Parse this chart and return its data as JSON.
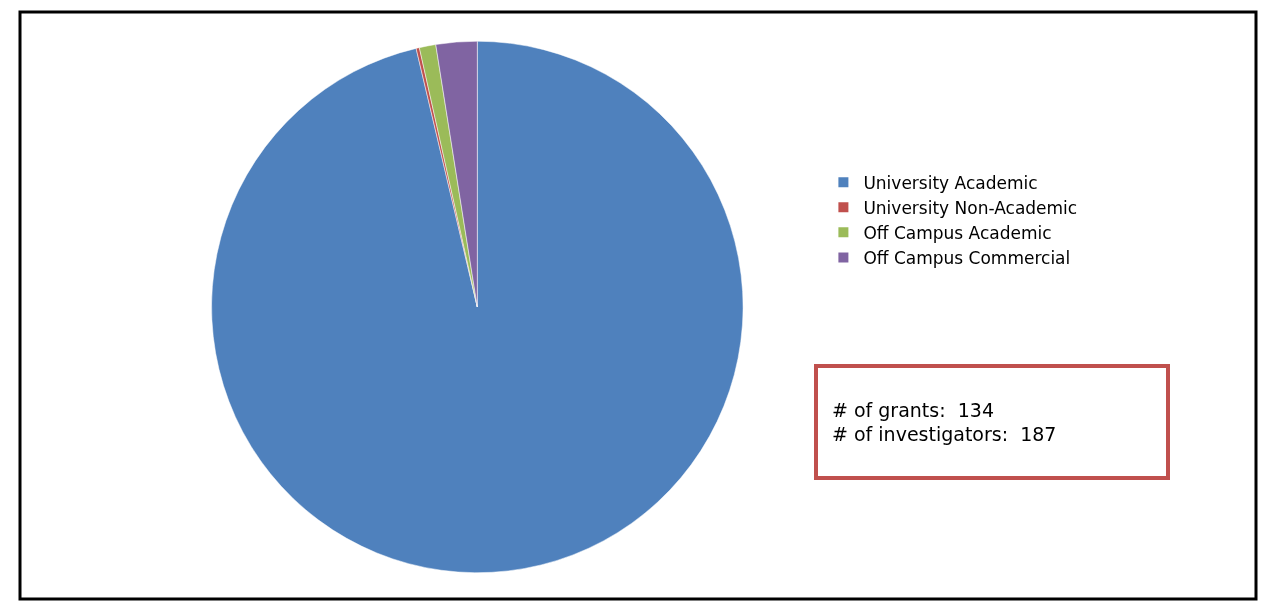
{
  "chart_data": {
    "type": "pie",
    "categories": [
      "University Academic",
      "University Non-Academic",
      "Off Campus Academic",
      "Off Campus Commercial"
    ],
    "values": [
      96.3,
      0.2,
      1.0,
      2.5
    ],
    "colors": [
      "#4f81bd",
      "#c0504d",
      "#9bbb59",
      "#8064a2"
    ],
    "legend": "right",
    "annotations": [
      "# of grants:  134\n# of investigators:  187"
    ]
  }
}
